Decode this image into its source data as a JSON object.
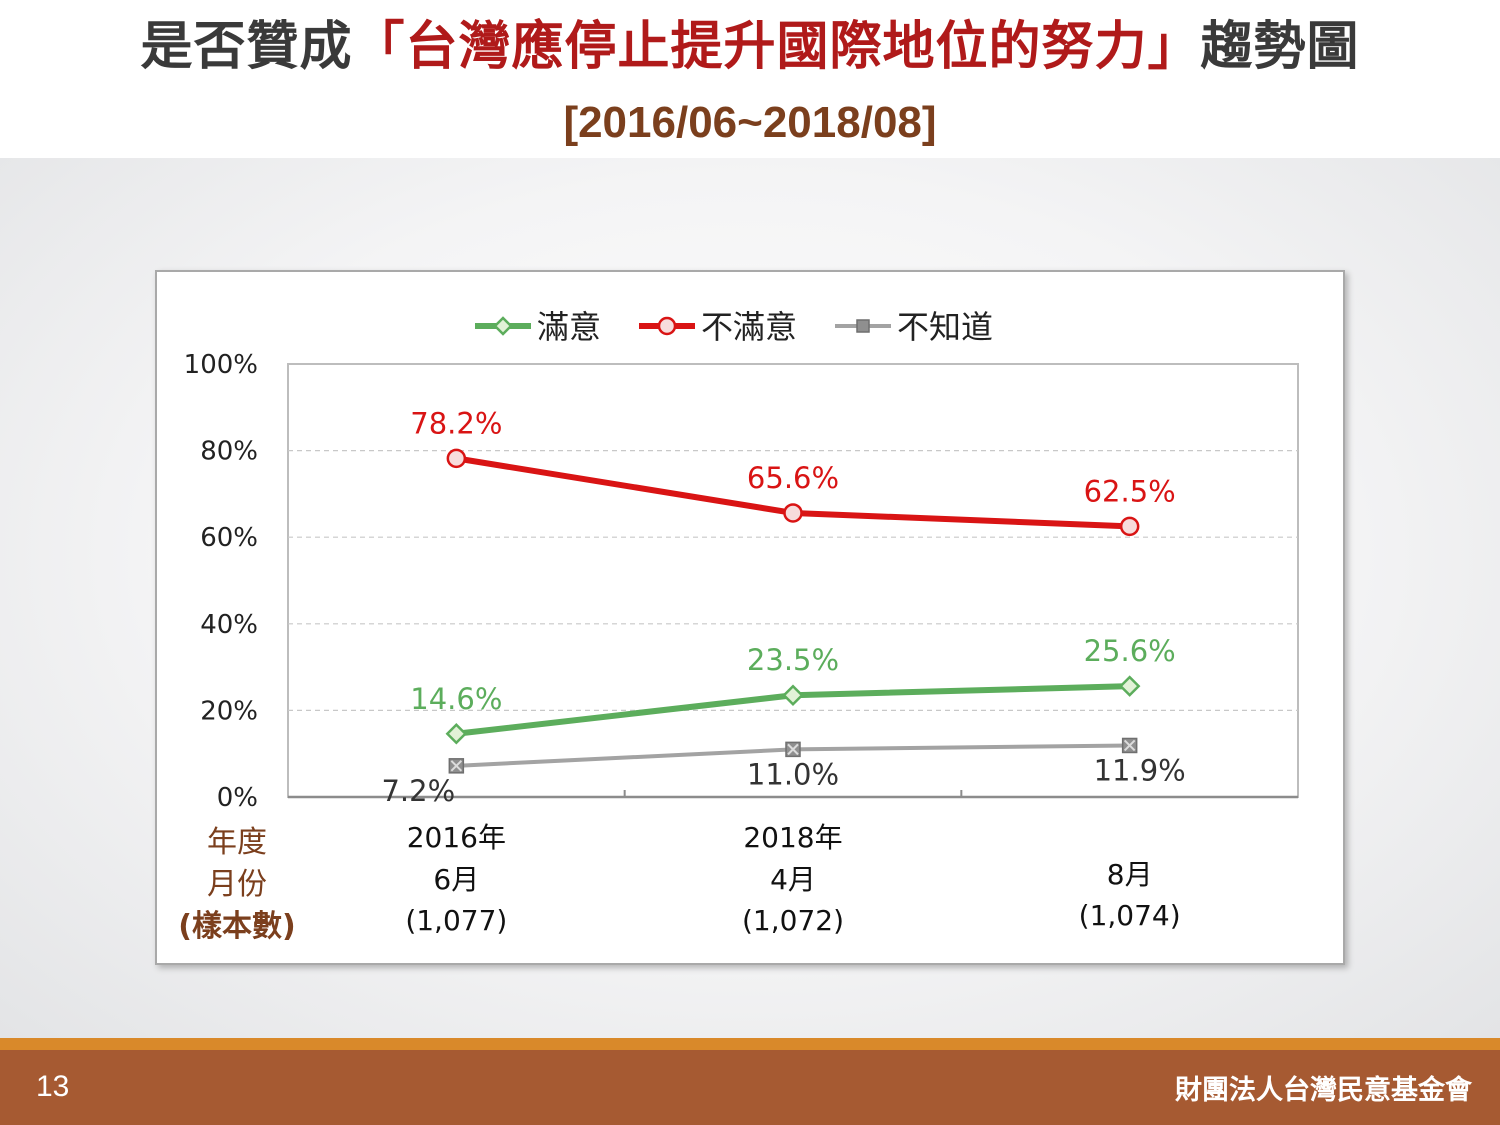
{
  "header": {
    "title_pre": "是否贊成",
    "title_highlight": "「台灣應停止提升國際地位的努力」",
    "title_post": "趨勢圖",
    "subtitle": "[2016/06~2018/08]"
  },
  "chart_data": {
    "type": "line",
    "categories": [
      {
        "year": "2016年",
        "month": "6月",
        "sample": "(1,077)"
      },
      {
        "year": "2018年",
        "month": "4月",
        "sample": "(1,072)"
      },
      {
        "year": "",
        "month": "8月",
        "sample": "(1,074)"
      }
    ],
    "series": [
      {
        "name": "滿意",
        "values": [
          14.6,
          23.5,
          25.6
        ],
        "labels": [
          "14.6%",
          "23.5%",
          "25.6%"
        ],
        "color": "#5cad5c",
        "marker": "diamond",
        "label_color": "#5cad5c"
      },
      {
        "name": "不滿意",
        "values": [
          78.2,
          65.6,
          62.5
        ],
        "labels": [
          "78.2%",
          "65.6%",
          "62.5%"
        ],
        "color": "#d91414",
        "marker": "circle",
        "label_color": "#d91414"
      },
      {
        "name": "不知道",
        "values": [
          7.2,
          11.0,
          11.9
        ],
        "labels": [
          "7.2%",
          "11.0%",
          "11.9%"
        ],
        "color": "#a3a3a3",
        "marker": "x-square",
        "label_color": "#333333"
      }
    ],
    "yticks": [
      "0%",
      "20%",
      "40%",
      "60%",
      "80%",
      "100%"
    ],
    "ylim": [
      0,
      100
    ],
    "grid": true,
    "legend_position": "top",
    "row_headers": [
      "年度",
      "月份",
      "(樣本數)"
    ]
  },
  "footer": {
    "page_number": "13",
    "organization": "財團法人台灣民意基金會"
  }
}
